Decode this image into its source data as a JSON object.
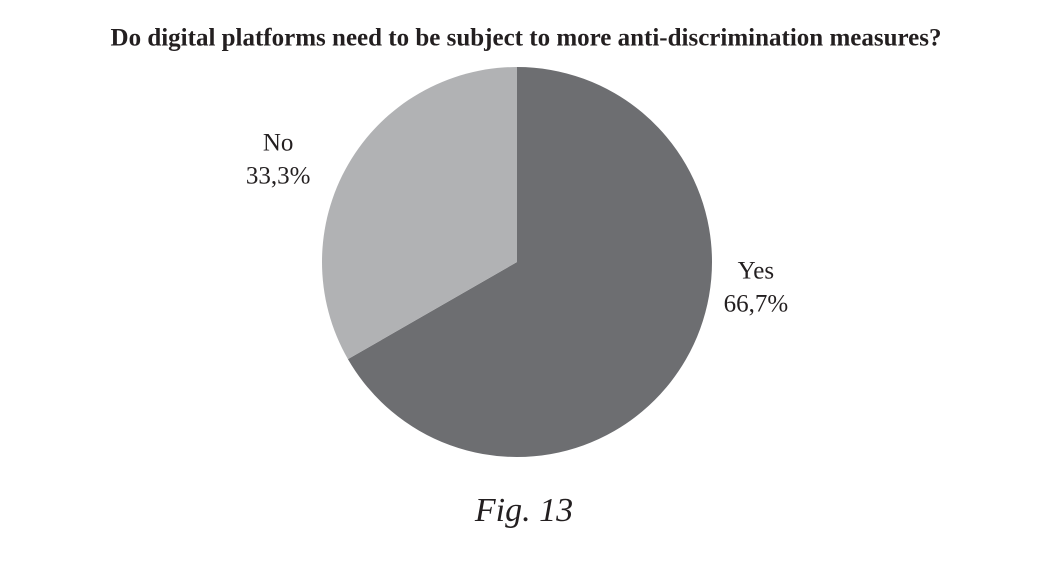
{
  "chart_data": {
    "type": "pie",
    "title": "Do digital platforms need to be subject to more anti-discrimination measures?",
    "categories": [
      "Yes",
      "No"
    ],
    "values": [
      66.7,
      33.3
    ],
    "value_labels": [
      "66,7%",
      "33,3%"
    ],
    "colors": [
      "#6d6e71",
      "#b1b2b4"
    ],
    "caption": "Fig. 13"
  }
}
